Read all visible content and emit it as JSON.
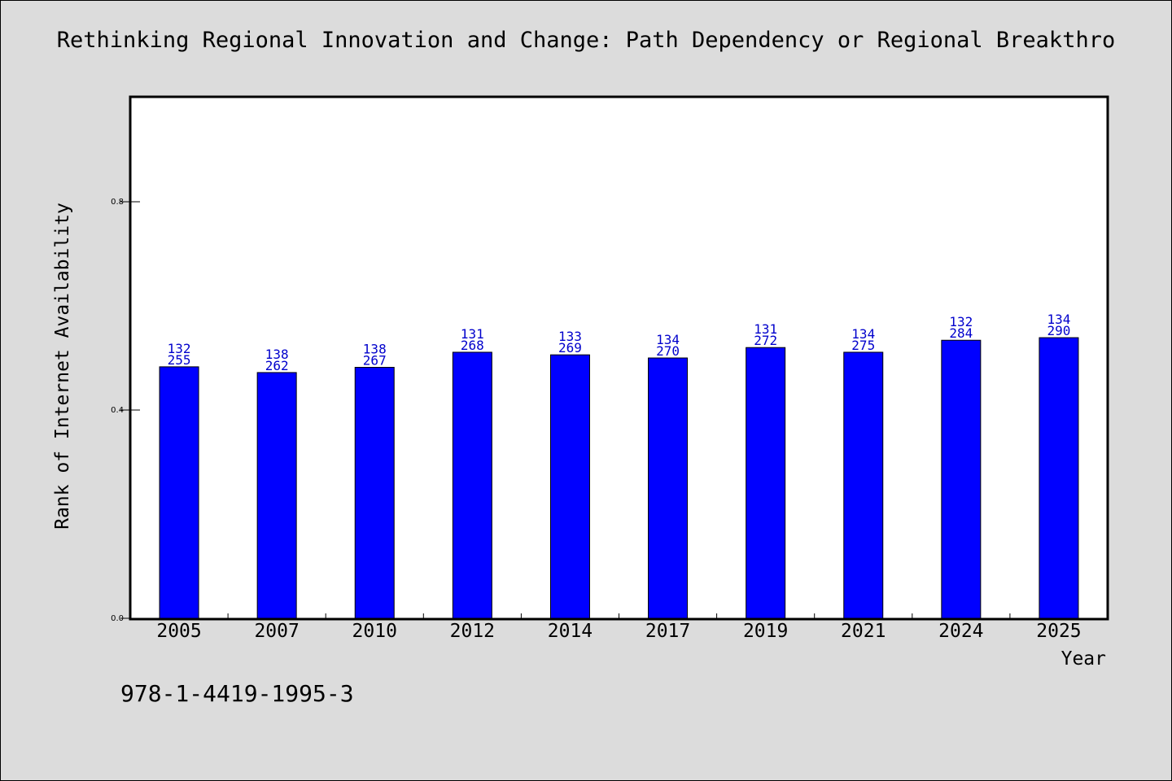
{
  "title": "Rethinking Regional Innovation and Change: Path Dependency or Regional Breakthro",
  "footer_text": "978-1-4419-1995-3",
  "colors": {
    "bar": "#0000ff",
    "label": "#0000cc",
    "background": "#dcdcdc",
    "plot_bg": "#ffffff"
  },
  "chart_data": {
    "type": "bar",
    "title": "Rethinking Regional Innovation and Change: Path Dependency or Regional Breakthro",
    "xlabel": "Year",
    "ylabel": "Rank of Internet Availability",
    "ylim": [
      0,
      1.0
    ],
    "yticks": [
      0.0,
      0.4,
      0.8
    ],
    "ytick_labels": [
      "0.0",
      "0.4",
      "0.8"
    ],
    "categories": [
      "2005",
      "2007",
      "2010",
      "2012",
      "2014",
      "2017",
      "2019",
      "2021",
      "2024",
      "2025"
    ],
    "values": [
      0.483,
      0.472,
      0.482,
      0.511,
      0.506,
      0.5,
      0.52,
      0.511,
      0.534,
      0.539
    ],
    "data_labels": [
      [
        "132",
        "255"
      ],
      [
        "138",
        "262"
      ],
      [
        "138",
        "267"
      ],
      [
        "131",
        "268"
      ],
      [
        "133",
        "269"
      ],
      [
        "134",
        "270"
      ],
      [
        "131",
        "272"
      ],
      [
        "134",
        "275"
      ],
      [
        "132",
        "284"
      ],
      [
        "134",
        "290"
      ]
    ],
    "grid": false,
    "legend": "none"
  }
}
